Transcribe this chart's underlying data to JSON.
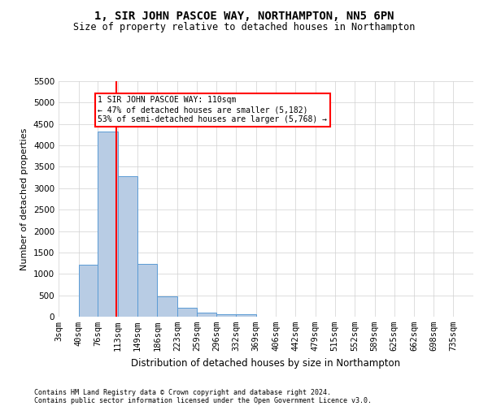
{
  "title": "1, SIR JOHN PASCOE WAY, NORTHAMPTON, NN5 6PN",
  "subtitle": "Size of property relative to detached houses in Northampton",
  "xlabel": "Distribution of detached houses by size in Northampton",
  "ylabel": "Number of detached properties",
  "footer_line1": "Contains HM Land Registry data © Crown copyright and database right 2024.",
  "footer_line2": "Contains public sector information licensed under the Open Government Licence v3.0.",
  "annotation_line1": "1 SIR JOHN PASCOE WAY: 110sqm",
  "annotation_line2": "← 47% of detached houses are smaller (5,182)",
  "annotation_line3": "53% of semi-detached houses are larger (5,768) →",
  "bar_color": "#b8cce4",
  "bar_edge_color": "#5b9bd5",
  "vline_color": "#ff0000",
  "vline_x": 110,
  "categories": [
    "3sqm",
    "40sqm",
    "76sqm",
    "113sqm",
    "149sqm",
    "186sqm",
    "223sqm",
    "259sqm",
    "296sqm",
    "332sqm",
    "369sqm",
    "406sqm",
    "442sqm",
    "479sqm",
    "515sqm",
    "552sqm",
    "589sqm",
    "625sqm",
    "662sqm",
    "698sqm",
    "735sqm"
  ],
  "bin_edges": [
    3,
    40,
    76,
    113,
    149,
    186,
    223,
    259,
    296,
    332,
    369,
    406,
    442,
    479,
    515,
    552,
    589,
    625,
    662,
    698,
    735
  ],
  "bin_width": 37,
  "values": [
    0,
    1220,
    4320,
    3280,
    1240,
    470,
    210,
    90,
    60,
    50,
    0,
    0,
    0,
    0,
    0,
    0,
    0,
    0,
    0,
    0,
    0
  ],
  "ylim": [
    0,
    5500
  ],
  "yticks": [
    0,
    500,
    1000,
    1500,
    2000,
    2500,
    3000,
    3500,
    4000,
    4500,
    5000,
    5500
  ],
  "background_color": "#ffffff",
  "grid_color": "#d0d0d0",
  "title_fontsize": 10,
  "subtitle_fontsize": 8.5,
  "ylabel_fontsize": 8,
  "xlabel_fontsize": 8.5,
  "tick_fontsize": 7.5,
  "footer_fontsize": 6
}
